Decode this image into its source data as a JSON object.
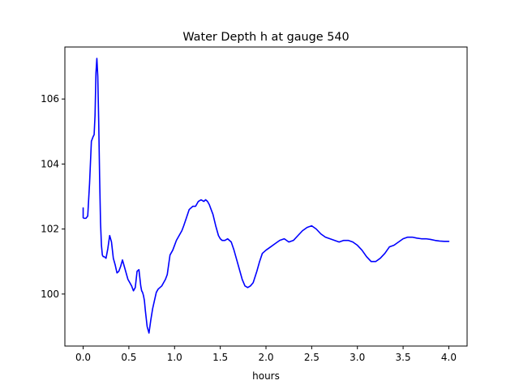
{
  "chart_data": {
    "type": "line",
    "title": "Water Depth h at gauge 540",
    "xlabel": "hours",
    "ylabel": "",
    "xlim": [
      -0.2,
      4.2
    ],
    "ylim": [
      98.4,
      107.6
    ],
    "xticks": [
      0.0,
      0.5,
      1.0,
      1.5,
      2.0,
      2.5,
      3.0,
      3.5,
      4.0
    ],
    "xtick_labels": [
      "0.0",
      "0.5",
      "1.0",
      "1.5",
      "2.0",
      "2.5",
      "3.0",
      "3.5",
      "4.0"
    ],
    "yticks": [
      100,
      102,
      104,
      106
    ],
    "ytick_labels": [
      "100",
      "102",
      "104",
      "106"
    ],
    "grid": false,
    "series": [
      {
        "color": "#0000ff",
        "x": [
          0.0,
          0.0,
          0.01,
          0.03,
          0.05,
          0.07,
          0.09,
          0.11,
          0.12,
          0.13,
          0.14,
          0.15,
          0.16,
          0.17,
          0.18,
          0.19,
          0.2,
          0.21,
          0.22,
          0.23,
          0.25,
          0.27,
          0.29,
          0.31,
          0.33,
          0.35,
          0.37,
          0.39,
          0.41,
          0.43,
          0.45,
          0.47,
          0.49,
          0.51,
          0.53,
          0.55,
          0.57,
          0.59,
          0.61,
          0.62,
          0.63,
          0.64,
          0.65,
          0.66,
          0.67,
          0.68,
          0.7,
          0.72,
          0.74,
          0.76,
          0.78,
          0.8,
          0.82,
          0.84,
          0.86,
          0.88,
          0.9,
          0.92,
          0.95,
          0.98,
          1.0,
          1.02,
          1.05,
          1.08,
          1.1,
          1.13,
          1.16,
          1.2,
          1.23,
          1.26,
          1.29,
          1.32,
          1.34,
          1.36,
          1.38,
          1.4,
          1.42,
          1.45,
          1.48,
          1.5,
          1.52,
          1.55,
          1.58,
          1.62,
          1.65,
          1.68,
          1.71,
          1.74,
          1.77,
          1.8,
          1.83,
          1.86,
          1.9,
          1.93,
          1.96,
          2.0,
          2.05,
          2.1,
          2.15,
          2.2,
          2.25,
          2.3,
          2.35,
          2.4,
          2.45,
          2.5,
          2.55,
          2.6,
          2.65,
          2.7,
          2.75,
          2.8,
          2.85,
          2.9,
          2.95,
          3.0,
          3.05,
          3.1,
          3.15,
          3.2,
          3.25,
          3.3,
          3.35,
          3.4,
          3.45,
          3.5,
          3.55,
          3.6,
          3.65,
          3.7,
          3.75,
          3.8,
          3.85,
          3.9,
          3.95,
          4.0
        ],
        "y": [
          102.65,
          102.35,
          102.33,
          102.33,
          102.4,
          103.4,
          104.7,
          104.85,
          104.9,
          105.5,
          106.8,
          107.25,
          106.7,
          105.3,
          103.6,
          102.2,
          101.5,
          101.2,
          101.15,
          101.15,
          101.1,
          101.4,
          101.8,
          101.6,
          101.1,
          100.9,
          100.65,
          100.7,
          100.85,
          101.05,
          100.85,
          100.65,
          100.45,
          100.35,
          100.25,
          100.1,
          100.2,
          100.7,
          100.75,
          100.5,
          100.25,
          100.1,
          100.05,
          99.95,
          99.8,
          99.5,
          99.0,
          98.8,
          99.2,
          99.55,
          99.8,
          100.05,
          100.15,
          100.2,
          100.25,
          100.35,
          100.45,
          100.6,
          101.2,
          101.35,
          101.5,
          101.65,
          101.8,
          101.95,
          102.1,
          102.35,
          102.6,
          102.7,
          102.7,
          102.85,
          102.9,
          102.85,
          102.9,
          102.85,
          102.75,
          102.6,
          102.45,
          102.1,
          101.8,
          101.7,
          101.65,
          101.65,
          101.7,
          101.6,
          101.35,
          101.05,
          100.75,
          100.45,
          100.25,
          100.2,
          100.25,
          100.35,
          100.7,
          101.0,
          101.25,
          101.35,
          101.45,
          101.55,
          101.65,
          101.7,
          101.6,
          101.65,
          101.8,
          101.95,
          102.05,
          102.1,
          102.0,
          101.85,
          101.75,
          101.7,
          101.65,
          101.6,
          101.65,
          101.65,
          101.6,
          101.5,
          101.35,
          101.15,
          101.0,
          101.0,
          101.1,
          101.25,
          101.45,
          101.5,
          101.6,
          101.7,
          101.75,
          101.75,
          101.72,
          101.7,
          101.7,
          101.68,
          101.65,
          101.63,
          101.62,
          101.62
        ]
      }
    ]
  }
}
